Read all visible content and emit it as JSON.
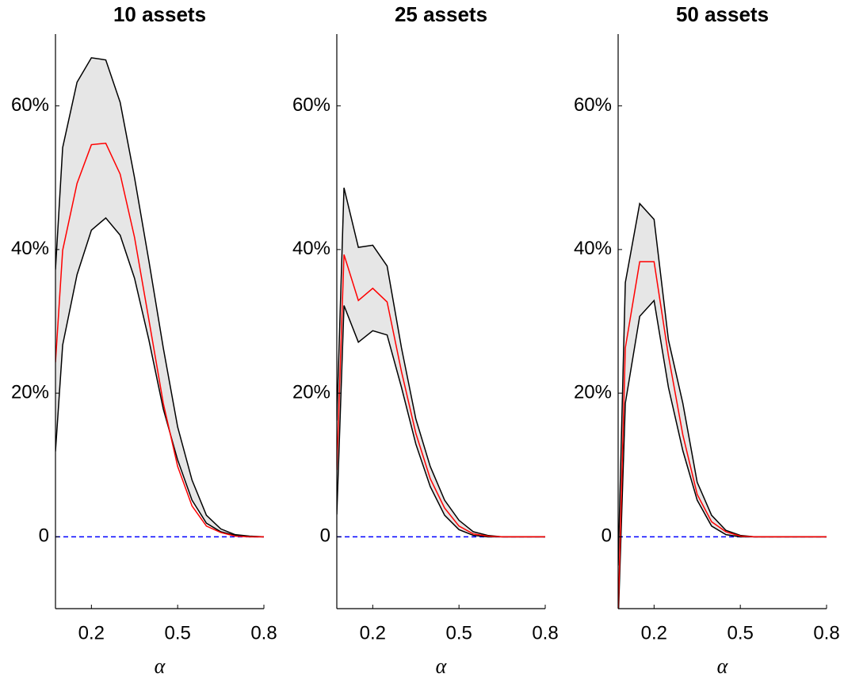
{
  "chart_data": [
    {
      "type": "line",
      "title": "10 assets",
      "xlabel": "α",
      "x": [
        0.075,
        0.1,
        0.15,
        0.2,
        0.25,
        0.3,
        0.35,
        0.4,
        0.45,
        0.5,
        0.55,
        0.6,
        0.65,
        0.7,
        0.75,
        0.8
      ],
      "series": [
        {
          "color": "#000000",
          "values": [
            37.2,
            54.2,
            63.3,
            66.7,
            66.4,
            60.5,
            50,
            38.4,
            26.3,
            15.3,
            7.9,
            3,
            1.1,
            0.3,
            0.1,
            0
          ]
        },
        {
          "color": "#ff0000",
          "values": [
            24.3,
            39.9,
            49.2,
            54.6,
            54.8,
            50.5,
            41.7,
            30.2,
            18.6,
            9.8,
            4.3,
            1.5,
            0.6,
            0.1,
            0,
            0
          ]
        },
        {
          "color": "#000000",
          "values": [
            11.9,
            26.7,
            36.5,
            42.7,
            44.4,
            42,
            36,
            27.4,
            17.8,
            10.7,
            5.1,
            1.9,
            0.7,
            0.2,
            0,
            0
          ]
        }
      ],
      "band_color": "#e6e6e6",
      "reference_line": {
        "value": 0,
        "color": "#0000ff"
      },
      "xlim": [
        0.075,
        0.8
      ],
      "ylim": [
        -10,
        70
      ],
      "xticks": [
        0.2,
        0.5,
        0.8
      ],
      "yticks": [
        0,
        {
          "value": 20,
          "label": "20%"
        },
        {
          "value": 40,
          "label": "40%"
        },
        {
          "value": 60,
          "label": "60%"
        }
      ]
    },
    {
      "type": "line",
      "title": "25 assets",
      "xlabel": "α",
      "x": [
        0.075,
        0.1,
        0.15,
        0.2,
        0.25,
        0.3,
        0.35,
        0.4,
        0.45,
        0.5,
        0.55,
        0.6,
        0.65,
        0.7,
        0.75,
        0.8
      ],
      "series": [
        {
          "color": "#000000",
          "values": [
            16.2,
            48.6,
            40.3,
            40.6,
            37.7,
            26.3,
            16.4,
            9.8,
            5.1,
            2.3,
            0.7,
            0.2,
            0,
            0,
            0,
            0
          ]
        },
        {
          "color": "#ff0000",
          "values": [
            9.3,
            39.3,
            32.9,
            34.6,
            32.7,
            23,
            14.4,
            8.1,
            4,
            1.5,
            0.4,
            0.1,
            0,
            0,
            0,
            0
          ]
        },
        {
          "color": "#000000",
          "values": [
            3.1,
            32.2,
            27.1,
            28.7,
            28.1,
            20.8,
            12.9,
            7,
            3,
            1,
            0.2,
            0,
            0,
            0,
            0,
            0
          ]
        }
      ],
      "band_color": "#e6e6e6",
      "reference_line": {
        "value": 0,
        "color": "#0000ff"
      },
      "xlim": [
        0.075,
        0.8
      ],
      "ylim": [
        -10,
        70
      ],
      "xticks": [
        0.2,
        0.5,
        0.8
      ],
      "yticks": [
        0,
        {
          "value": 20,
          "label": "20%"
        },
        {
          "value": 40,
          "label": "40%"
        },
        {
          "value": 60,
          "label": "60%"
        }
      ]
    },
    {
      "type": "line",
      "title": "50 assets",
      "xlabel": "α",
      "x": [
        0.075,
        0.1,
        0.15,
        0.2,
        0.25,
        0.3,
        0.35,
        0.4,
        0.45,
        0.5,
        0.55,
        0.6,
        0.65,
        0.7,
        0.75,
        0.8
      ],
      "series": [
        {
          "color": "#000000",
          "values": [
            -4,
            35.4,
            46.4,
            44.2,
            27.4,
            18.6,
            7.6,
            3,
            0.9,
            0.2,
            0,
            0,
            0,
            0,
            0,
            0
          ]
        },
        {
          "color": "#ff0000",
          "values": [
            -11,
            26.3,
            38.3,
            38.3,
            25.2,
            14.2,
            5.9,
            2.1,
            0.7,
            0.1,
            0,
            0,
            0,
            0,
            0,
            0
          ]
        },
        {
          "color": "#000000",
          "values": [
            -12,
            18.6,
            30.7,
            32.9,
            20.8,
            12,
            5.1,
            1.5,
            0.3,
            0,
            0,
            0,
            0,
            0,
            0,
            0
          ]
        }
      ],
      "band_color": "#e6e6e6",
      "reference_line": {
        "value": 0,
        "color": "#0000ff"
      },
      "xlim": [
        0.075,
        0.8
      ],
      "ylim": [
        -10,
        70
      ],
      "xticks": [
        0.2,
        0.5,
        0.8
      ],
      "yticks": [
        0,
        {
          "value": 20,
          "label": "20%"
        },
        {
          "value": 40,
          "label": "40%"
        },
        {
          "value": 60,
          "label": "60%"
        }
      ]
    }
  ]
}
